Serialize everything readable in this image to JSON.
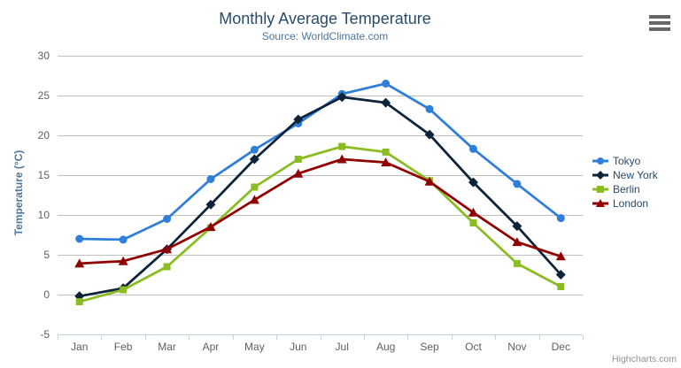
{
  "chart_data": {
    "type": "line",
    "title": "Monthly Average Temperature",
    "subtitle": "Source: WorldClimate.com",
    "xlabel": "",
    "ylabel": "Temperature (°C)",
    "ylim": [
      -5,
      30
    ],
    "ytick_interval": 5,
    "ytick_labels": [
      "-5",
      "0",
      "5",
      "10",
      "15",
      "20",
      "25",
      "30"
    ],
    "grid": true,
    "legend_position": "right",
    "categories": [
      "Jan",
      "Feb",
      "Mar",
      "Apr",
      "May",
      "Jun",
      "Jul",
      "Aug",
      "Sep",
      "Oct",
      "Nov",
      "Dec"
    ],
    "series": [
      {
        "name": "Tokyo",
        "color": "#2f7ed8",
        "marker": "circle",
        "values": [
          7.0,
          6.9,
          9.5,
          14.5,
          18.2,
          21.5,
          25.2,
          26.5,
          23.3,
          18.3,
          13.9,
          9.6
        ]
      },
      {
        "name": "New York",
        "color": "#0d233a",
        "marker": "diamond",
        "values": [
          -0.2,
          0.8,
          5.7,
          11.3,
          17.0,
          22.0,
          24.8,
          24.1,
          20.1,
          14.1,
          8.6,
          2.5
        ]
      },
      {
        "name": "Berlin",
        "color": "#8bbc21",
        "marker": "square",
        "values": [
          -0.9,
          0.6,
          3.5,
          8.4,
          13.5,
          17.0,
          18.6,
          17.9,
          14.3,
          9.0,
          3.9,
          1.0
        ]
      },
      {
        "name": "London",
        "color": "#910000",
        "marker": "triangle",
        "values": [
          3.9,
          4.2,
          5.7,
          8.5,
          11.9,
          15.2,
          17.0,
          16.6,
          14.2,
          10.3,
          6.6,
          4.8
        ]
      }
    ]
  },
  "colors": {
    "title": "#274b6d",
    "subtitle": "#4d759e",
    "axis_label": "#606060",
    "grid_line": "#c0c0c0",
    "axis_line": "#c0d0e0",
    "legend_text": "#274b6d",
    "credit_text": "#909090",
    "menu_icon": "#666666"
  },
  "icons": {
    "context_menu": "hamburger-icon"
  },
  "credit": "Highcharts.com"
}
